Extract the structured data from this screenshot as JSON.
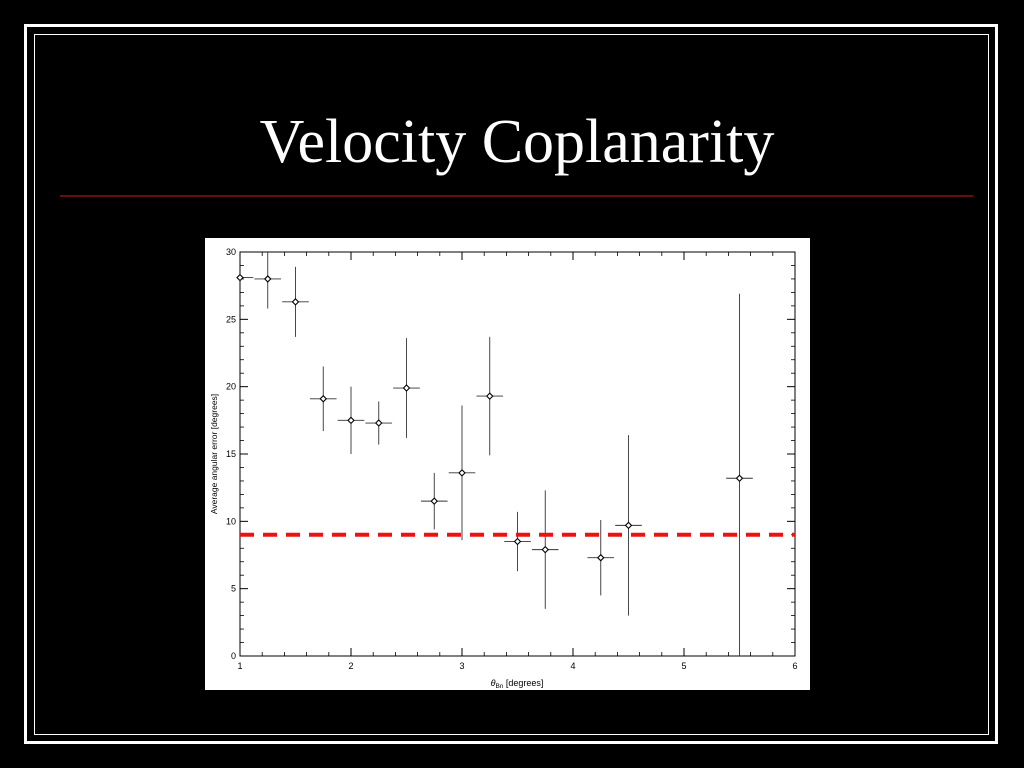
{
  "slide": {
    "title": "Velocity Coplanarity"
  },
  "colors": {
    "background": "#000000",
    "title": "#ffffff",
    "rule": "#6b0d0d",
    "threshold": "#ee1111"
  },
  "chart_data": {
    "type": "scatter",
    "xlabel_symbol": "θ",
    "xlabel_sub": "Bn",
    "xlabel_unit": " [degrees]",
    "ylabel": "Average angular error [degrees]",
    "xlim": [
      1,
      6
    ],
    "ylim": [
      0,
      30
    ],
    "xticks": [
      "1",
      "2",
      "3",
      "4",
      "5",
      "6"
    ],
    "yticks": [
      "0",
      "5",
      "10",
      "15",
      "20",
      "25",
      "30"
    ],
    "grid": false,
    "marker": "diamond",
    "points": [
      {
        "x": 1.0,
        "y": 28.1,
        "xerr": 0.12,
        "yerr": 0
      },
      {
        "x": 1.25,
        "y": 28.0,
        "xerr": 0.12,
        "yerr": 2.2
      },
      {
        "x": 1.5,
        "y": 26.3,
        "xerr": 0.12,
        "yerr": 2.6
      },
      {
        "x": 1.75,
        "y": 19.1,
        "xerr": 0.12,
        "yerr": 2.4
      },
      {
        "x": 2.0,
        "y": 17.5,
        "xerr": 0.12,
        "yerr": 2.5
      },
      {
        "x": 2.25,
        "y": 17.3,
        "xerr": 0.12,
        "yerr": 1.6
      },
      {
        "x": 2.5,
        "y": 19.9,
        "xerr": 0.12,
        "yerr": 3.7
      },
      {
        "x": 2.75,
        "y": 11.5,
        "xerr": 0.12,
        "yerr": 2.1
      },
      {
        "x": 3.0,
        "y": 13.6,
        "xerr": 0.12,
        "yerr": 5.0
      },
      {
        "x": 3.25,
        "y": 19.3,
        "xerr": 0.12,
        "yerr": 4.4
      },
      {
        "x": 3.5,
        "y": 8.5,
        "xerr": 0.12,
        "yerr": 2.2
      },
      {
        "x": 3.75,
        "y": 7.9,
        "xerr": 0.12,
        "yerr": 4.4
      },
      {
        "x": 4.25,
        "y": 7.3,
        "xerr": 0.12,
        "yerr": 2.8
      },
      {
        "x": 4.5,
        "y": 9.7,
        "xerr": 0.12,
        "yerr": 6.7
      },
      {
        "x": 5.5,
        "y": 13.2,
        "xerr": 0.12,
        "yerr": 13.7
      }
    ],
    "threshold": {
      "y": 9.0,
      "style": "dashed"
    }
  }
}
